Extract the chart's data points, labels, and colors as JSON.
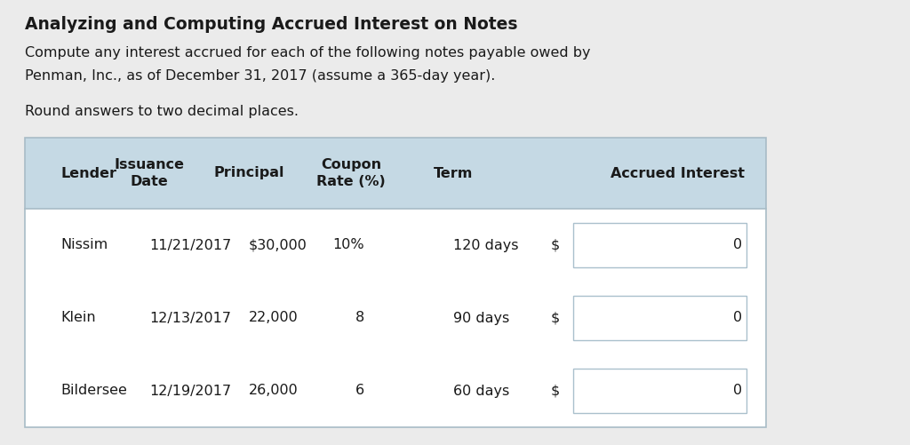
{
  "title": "Analyzing and Computing Accrued Interest on Notes",
  "subtitle_line1": "Compute any interest accrued for each of the following notes payable owed by",
  "subtitle_line2": "Penman, Inc., as of December 31, 2017 (assume a 365-day year).",
  "note": "Round answers to two decimal places.",
  "bg_color": "#ebebeb",
  "table_header_bg": "#c5d9e4",
  "table_row_bg": "#ffffff",
  "input_box_bg": "#ffffff",
  "input_box_border": "#aac0cc",
  "headers": [
    "Lender",
    "Issuance\nDate",
    "Principal",
    "Coupon\nRate (%)",
    "Term",
    "Accrued Interest"
  ],
  "rows": [
    [
      "Nissim",
      "11/21/2017",
      "$30,000",
      "10%",
      "120 days",
      "$",
      "0"
    ],
    [
      "Klein",
      "12/13/2017",
      "22,000",
      "8",
      "90 days",
      "$",
      "0"
    ],
    [
      "Bildersee",
      "12/19/2017",
      "26,000",
      "6",
      "60 days",
      "$",
      "0"
    ]
  ],
  "title_fontsize": 13.5,
  "body_fontsize": 11.5,
  "header_fontsize": 11.5
}
